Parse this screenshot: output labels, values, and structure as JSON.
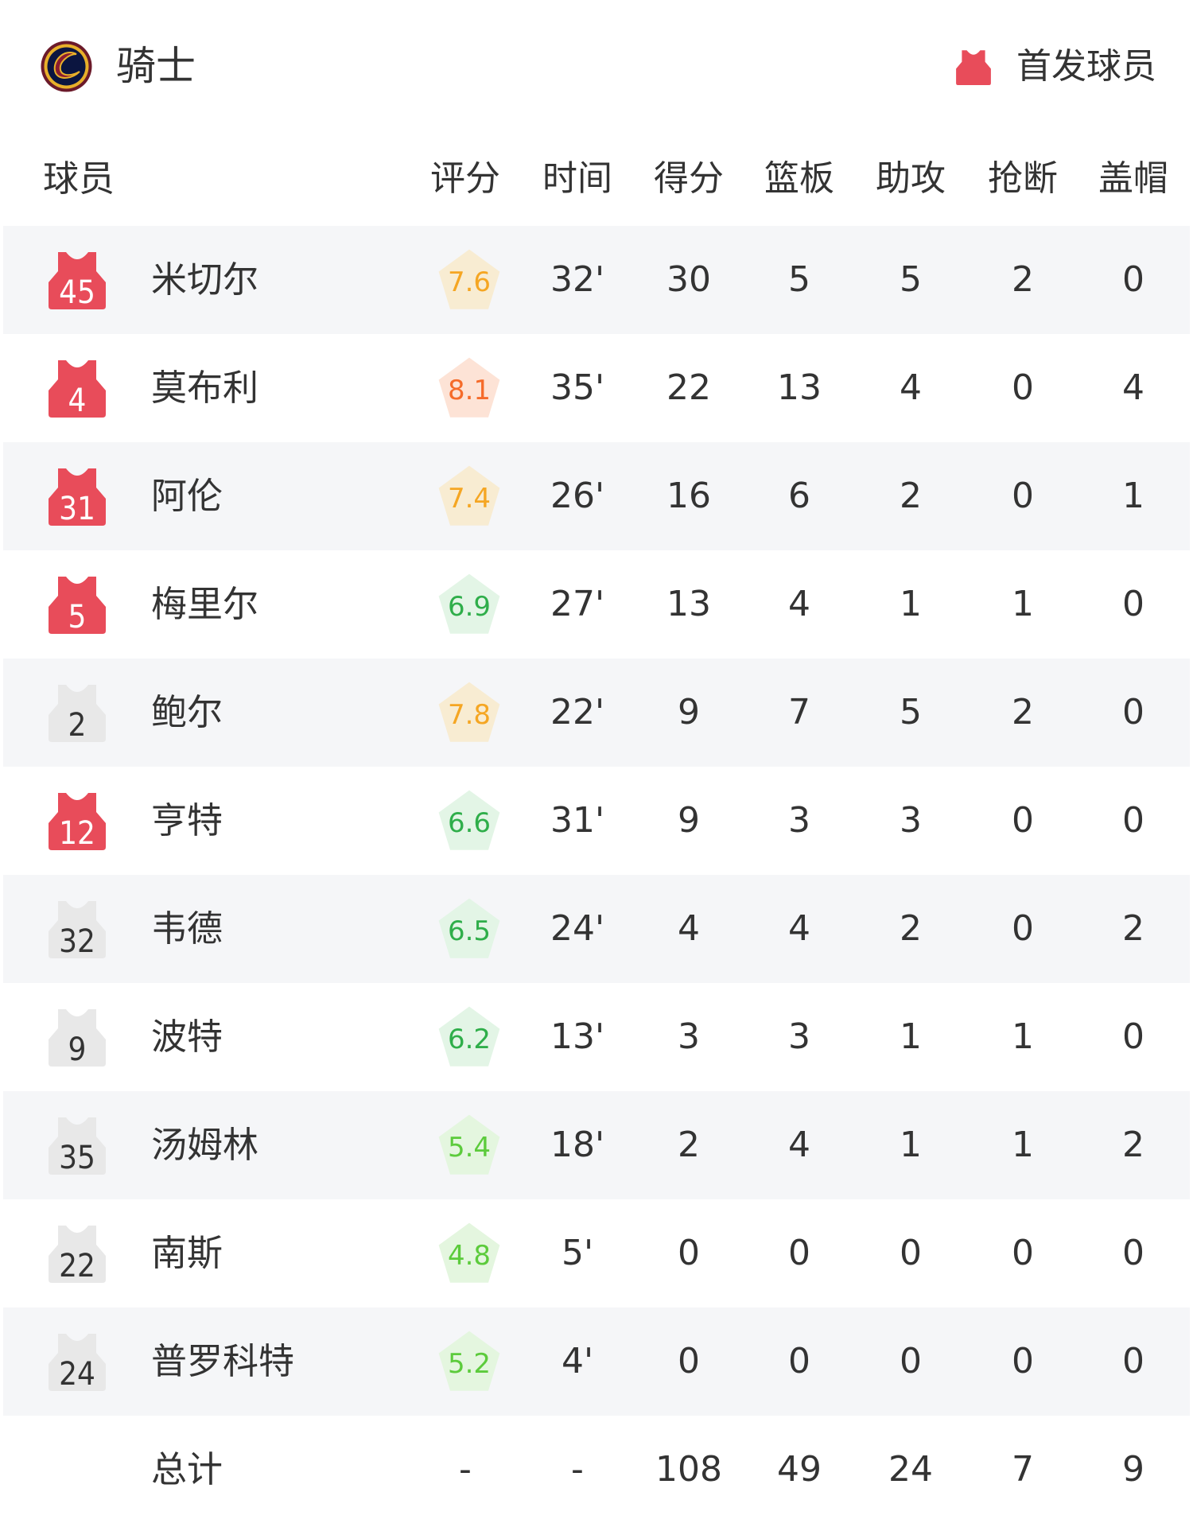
{
  "header": {
    "team": "骑士",
    "starter_label": "首发球员",
    "logo_icon": "cavaliers-logo",
    "starter_icon": "jersey-icon"
  },
  "columns": {
    "player": "球员",
    "stats": [
      "评分",
      "时间",
      "得分",
      "篮板",
      "助攻",
      "抢断",
      "盖帽"
    ]
  },
  "colors": {
    "starter_jersey": "#e84c5a",
    "bench_jersey": "#e8e8e8",
    "row_alt": "#f5f6f8"
  },
  "players": [
    {
      "number": "45",
      "name": "米切尔",
      "starter": true,
      "rating": "7.6",
      "stats": [
        "32'",
        "30",
        "5",
        "5",
        "2",
        "0"
      ]
    },
    {
      "number": "4",
      "name": "莫布利",
      "starter": true,
      "rating": "8.1",
      "stats": [
        "35'",
        "22",
        "13",
        "4",
        "0",
        "4"
      ]
    },
    {
      "number": "31",
      "name": "阿伦",
      "starter": true,
      "rating": "7.4",
      "stats": [
        "26'",
        "16",
        "6",
        "2",
        "0",
        "1"
      ]
    },
    {
      "number": "5",
      "name": "梅里尔",
      "starter": true,
      "rating": "6.9",
      "stats": [
        "27'",
        "13",
        "4",
        "1",
        "1",
        "0"
      ]
    },
    {
      "number": "2",
      "name": "鲍尔",
      "starter": false,
      "rating": "7.8",
      "stats": [
        "22'",
        "9",
        "7",
        "5",
        "2",
        "0"
      ]
    },
    {
      "number": "12",
      "name": "亨特",
      "starter": true,
      "rating": "6.6",
      "stats": [
        "31'",
        "9",
        "3",
        "3",
        "0",
        "0"
      ]
    },
    {
      "number": "32",
      "name": "韦德",
      "starter": false,
      "rating": "6.5",
      "stats": [
        "24'",
        "4",
        "4",
        "2",
        "0",
        "2"
      ]
    },
    {
      "number": "9",
      "name": "波特",
      "starter": false,
      "rating": "6.2",
      "stats": [
        "13'",
        "3",
        "3",
        "1",
        "1",
        "0"
      ]
    },
    {
      "number": "35",
      "name": "汤姆林",
      "starter": false,
      "rating": "5.4",
      "stats": [
        "18'",
        "2",
        "4",
        "1",
        "1",
        "2"
      ]
    },
    {
      "number": "22",
      "name": "南斯",
      "starter": false,
      "rating": "4.8",
      "stats": [
        "5'",
        "0",
        "0",
        "0",
        "0",
        "0"
      ]
    },
    {
      "number": "24",
      "name": "普罗科特",
      "starter": false,
      "rating": "5.2",
      "stats": [
        "4'",
        "0",
        "0",
        "0",
        "0",
        "0"
      ]
    }
  ],
  "totals": {
    "label": "总计",
    "values": [
      "-",
      "-",
      "108",
      "49",
      "24",
      "7",
      "9"
    ]
  }
}
